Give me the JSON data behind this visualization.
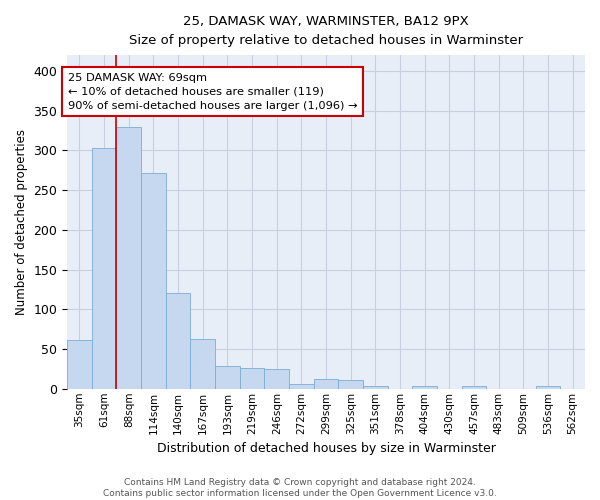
{
  "title1": "25, DAMASK WAY, WARMINSTER, BA12 9PX",
  "title2": "Size of property relative to detached houses in Warminster",
  "xlabel": "Distribution of detached houses by size in Warminster",
  "ylabel": "Number of detached properties",
  "bar_labels": [
    "35sqm",
    "61sqm",
    "88sqm",
    "114sqm",
    "140sqm",
    "167sqm",
    "193sqm",
    "219sqm",
    "246sqm",
    "272sqm",
    "299sqm",
    "325sqm",
    "351sqm",
    "378sqm",
    "404sqm",
    "430sqm",
    "457sqm",
    "483sqm",
    "509sqm",
    "536sqm",
    "562sqm"
  ],
  "bar_values": [
    62,
    303,
    330,
    272,
    120,
    63,
    29,
    26,
    25,
    6,
    12,
    11,
    4,
    0,
    3,
    0,
    3,
    0,
    0,
    3,
    0
  ],
  "bar_color": "#c5d8f0",
  "bar_edge_color": "#7aadd4",
  "annotation_text": "25 DAMASK WAY: 69sqm\n← 10% of detached houses are smaller (119)\n90% of semi-detached houses are larger (1,096) →",
  "red_line_index": 1,
  "annotation_box_color": "white",
  "annotation_box_edge": "#cc0000",
  "background_color": "#e8eef8",
  "grid_color": "#c8d0e0",
  "footer_text": "Contains HM Land Registry data © Crown copyright and database right 2024.\nContains public sector information licensed under the Open Government Licence v3.0.",
  "ylim": [
    0,
    420
  ],
  "yticks": [
    0,
    50,
    100,
    150,
    200,
    250,
    300,
    350,
    400
  ]
}
